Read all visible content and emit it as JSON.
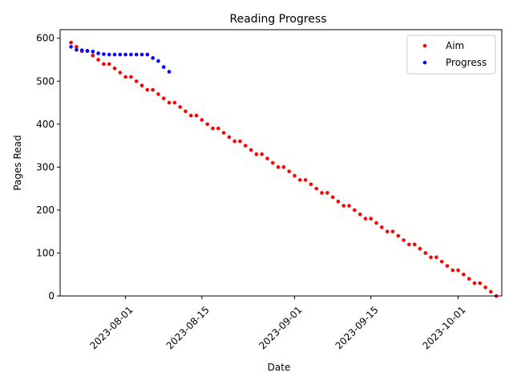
{
  "chart_data": {
    "type": "scatter",
    "title": "Reading Progress",
    "xlabel": "Date",
    "ylabel": "Pages Read",
    "x_type": "date",
    "xlim": [
      "2023-07-20",
      "2023-10-09"
    ],
    "ylim": [
      0,
      620
    ],
    "x_ticks": [
      "2023-08-01",
      "2023-08-15",
      "2023-09-01",
      "2023-09-15",
      "2023-10-01"
    ],
    "y_ticks": [
      0,
      100,
      200,
      300,
      400,
      500,
      600
    ],
    "grid": false,
    "legend_position": "top-right",
    "series": [
      {
        "name": "Aim",
        "color": "#ff0000",
        "points": [
          [
            "2023-07-22",
            590
          ],
          [
            "2023-07-23",
            580
          ],
          [
            "2023-07-24",
            570
          ],
          [
            "2023-07-25",
            570
          ],
          [
            "2023-07-26",
            560
          ],
          [
            "2023-07-27",
            550
          ],
          [
            "2023-07-28",
            540
          ],
          [
            "2023-07-29",
            540
          ],
          [
            "2023-07-30",
            530
          ],
          [
            "2023-07-31",
            520
          ],
          [
            "2023-08-01",
            510
          ],
          [
            "2023-08-02",
            510
          ],
          [
            "2023-08-03",
            500
          ],
          [
            "2023-08-04",
            490
          ],
          [
            "2023-08-05",
            480
          ],
          [
            "2023-08-06",
            480
          ],
          [
            "2023-08-07",
            470
          ],
          [
            "2023-08-08",
            460
          ],
          [
            "2023-08-09",
            450
          ],
          [
            "2023-08-10",
            450
          ],
          [
            "2023-08-11",
            440
          ],
          [
            "2023-08-12",
            430
          ],
          [
            "2023-08-13",
            420
          ],
          [
            "2023-08-14",
            420
          ],
          [
            "2023-08-15",
            410
          ],
          [
            "2023-08-16",
            400
          ],
          [
            "2023-08-17",
            390
          ],
          [
            "2023-08-18",
            390
          ],
          [
            "2023-08-19",
            380
          ],
          [
            "2023-08-20",
            370
          ],
          [
            "2023-08-21",
            360
          ],
          [
            "2023-08-22",
            360
          ],
          [
            "2023-08-23",
            350
          ],
          [
            "2023-08-24",
            340
          ],
          [
            "2023-08-25",
            330
          ],
          [
            "2023-08-26",
            330
          ],
          [
            "2023-08-27",
            320
          ],
          [
            "2023-08-28",
            310
          ],
          [
            "2023-08-29",
            300
          ],
          [
            "2023-08-30",
            300
          ],
          [
            "2023-08-31",
            290
          ],
          [
            "2023-09-01",
            280
          ],
          [
            "2023-09-02",
            270
          ],
          [
            "2023-09-03",
            270
          ],
          [
            "2023-09-04",
            260
          ],
          [
            "2023-09-05",
            250
          ],
          [
            "2023-09-06",
            240
          ],
          [
            "2023-09-07",
            240
          ],
          [
            "2023-09-08",
            230
          ],
          [
            "2023-09-09",
            220
          ],
          [
            "2023-09-10",
            210
          ],
          [
            "2023-09-11",
            210
          ],
          [
            "2023-09-12",
            200
          ],
          [
            "2023-09-13",
            190
          ],
          [
            "2023-09-14",
            180
          ],
          [
            "2023-09-15",
            180
          ],
          [
            "2023-09-16",
            170
          ],
          [
            "2023-09-17",
            160
          ],
          [
            "2023-09-18",
            150
          ],
          [
            "2023-09-19",
            150
          ],
          [
            "2023-09-20",
            140
          ],
          [
            "2023-09-21",
            130
          ],
          [
            "2023-09-22",
            120
          ],
          [
            "2023-09-23",
            120
          ],
          [
            "2023-09-24",
            110
          ],
          [
            "2023-09-25",
            100
          ],
          [
            "2023-09-26",
            90
          ],
          [
            "2023-09-27",
            90
          ],
          [
            "2023-09-28",
            80
          ],
          [
            "2023-09-29",
            70
          ],
          [
            "2023-09-30",
            60
          ],
          [
            "2023-10-01",
            60
          ],
          [
            "2023-10-02",
            50
          ],
          [
            "2023-10-03",
            40
          ],
          [
            "2023-10-04",
            30
          ],
          [
            "2023-10-05",
            30
          ],
          [
            "2023-10-06",
            20
          ],
          [
            "2023-10-07",
            10
          ],
          [
            "2023-10-08",
            0
          ]
        ]
      },
      {
        "name": "Progress",
        "color": "#0000ff",
        "points": [
          [
            "2023-07-22",
            580
          ],
          [
            "2023-07-23",
            573
          ],
          [
            "2023-07-24",
            572
          ],
          [
            "2023-07-25",
            571
          ],
          [
            "2023-07-26",
            569
          ],
          [
            "2023-07-27",
            565
          ],
          [
            "2023-07-28",
            563
          ],
          [
            "2023-07-29",
            562
          ],
          [
            "2023-07-30",
            562
          ],
          [
            "2023-07-31",
            562
          ],
          [
            "2023-08-01",
            562
          ],
          [
            "2023-08-02",
            562
          ],
          [
            "2023-08-03",
            562
          ],
          [
            "2023-08-04",
            562
          ],
          [
            "2023-08-05",
            562
          ],
          [
            "2023-08-06",
            554
          ],
          [
            "2023-08-07",
            547
          ],
          [
            "2023-08-08",
            533
          ],
          [
            "2023-08-09",
            522
          ]
        ]
      }
    ]
  }
}
